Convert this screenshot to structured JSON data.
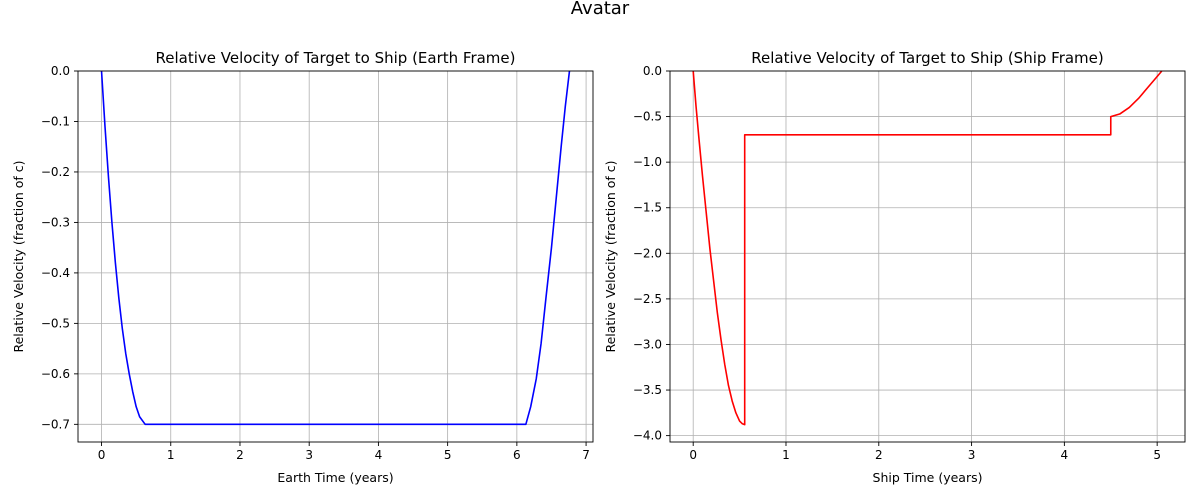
{
  "suptitle": "Avatar",
  "chart_data": [
    {
      "type": "line",
      "title": "Relative Velocity of Target to Ship (Earth Frame)",
      "xlabel": "Earth Time (years)",
      "ylabel": "Relative Velocity (fraction of c)",
      "xlim": [
        -0.34,
        7.1
      ],
      "ylim": [
        -0.735,
        0.0
      ],
      "xticks": [
        0,
        1,
        2,
        3,
        4,
        5,
        6,
        7
      ],
      "xtick_labels": [
        "0",
        "1",
        "2",
        "3",
        "4",
        "5",
        "6",
        "7"
      ],
      "yticks": [
        0.0,
        -0.1,
        -0.2,
        -0.3,
        -0.4,
        -0.5,
        -0.6,
        -0.7
      ],
      "ytick_labels": [
        "0.0",
        "−0.1",
        "−0.2",
        "−0.3",
        "−0.4",
        "−0.5",
        "−0.6",
        "−0.7"
      ],
      "grid": true,
      "series": [
        {
          "color": "#0000ff",
          "x": [
            0.0,
            0.05,
            0.1,
            0.15,
            0.2,
            0.25,
            0.3,
            0.35,
            0.4,
            0.45,
            0.5,
            0.55,
            0.63,
            6.13,
            6.2,
            6.28,
            6.35,
            6.42,
            6.5,
            6.57,
            6.64,
            6.7,
            6.76
          ],
          "y": [
            0.0,
            -0.11,
            -0.21,
            -0.3,
            -0.38,
            -0.45,
            -0.51,
            -0.56,
            -0.6,
            -0.635,
            -0.665,
            -0.685,
            -0.7,
            -0.7,
            -0.665,
            -0.61,
            -0.54,
            -0.45,
            -0.35,
            -0.25,
            -0.15,
            -0.07,
            0.0
          ]
        }
      ]
    },
    {
      "type": "line",
      "title": "Relative Velocity of Target to Ship (Ship Frame)",
      "xlabel": "Ship Time (years)",
      "ylabel": "Relative Velocity (fraction of c)",
      "xlim": [
        -0.25,
        5.3
      ],
      "ylim": [
        -4.07,
        0.0
      ],
      "xticks": [
        0,
        1,
        2,
        3,
        4,
        5
      ],
      "xtick_labels": [
        "0",
        "1",
        "2",
        "3",
        "4",
        "5"
      ],
      "yticks": [
        0.0,
        -0.5,
        -1.0,
        -1.5,
        -2.0,
        -2.5,
        -3.0,
        -3.5,
        -4.0
      ],
      "ytick_labels": [
        "0.0",
        "−0.5",
        "−1.0",
        "−1.5",
        "−2.0",
        "−2.5",
        "−3.0",
        "−3.5",
        "−4.0"
      ],
      "grid": true,
      "series": [
        {
          "color": "#ff0000",
          "x": [
            0.0,
            0.03,
            0.06,
            0.1,
            0.14,
            0.18,
            0.22,
            0.26,
            0.3,
            0.34,
            0.38,
            0.42,
            0.46,
            0.5,
            0.53,
            0.555,
            0.555,
            0.6,
            1.0,
            2.0,
            3.0,
            4.0,
            4.5,
            4.5,
            4.6,
            4.7,
            4.8,
            4.9,
            5.0,
            5.05
          ],
          "y": [
            0.0,
            -0.38,
            -0.72,
            -1.15,
            -1.55,
            -1.95,
            -2.3,
            -2.65,
            -2.95,
            -3.22,
            -3.45,
            -3.62,
            -3.75,
            -3.84,
            -3.87,
            -3.88,
            -0.7,
            -0.7,
            -0.7,
            -0.7,
            -0.7,
            -0.7,
            -0.7,
            -0.5,
            -0.47,
            -0.4,
            -0.3,
            -0.18,
            -0.06,
            0.0
          ]
        }
      ]
    }
  ]
}
